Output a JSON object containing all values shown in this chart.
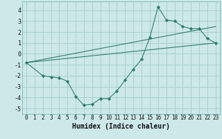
{
  "xlabel": "Humidex (Indice chaleur)",
  "background_color": "#cce8e8",
  "grid_color": "#aacfcf",
  "line_color": "#2e7d6e",
  "marker_color": "#2e7d6e",
  "xlim": [
    -0.5,
    23.5
  ],
  "ylim": [
    -5.5,
    4.8
  ],
  "xticks": [
    0,
    1,
    2,
    3,
    4,
    5,
    6,
    7,
    8,
    9,
    10,
    11,
    12,
    13,
    14,
    15,
    16,
    17,
    18,
    19,
    20,
    21,
    22,
    23
  ],
  "yticks": [
    -5,
    -4,
    -3,
    -2,
    -1,
    0,
    1,
    2,
    3,
    4
  ],
  "series1_x": [
    0,
    2,
    3,
    4,
    5,
    6,
    7,
    8,
    9,
    10,
    11,
    12,
    13,
    14,
    15,
    16,
    17,
    18,
    19,
    20,
    21,
    22,
    23
  ],
  "series1_y": [
    -0.8,
    -2.0,
    -2.1,
    -2.2,
    -2.5,
    -3.9,
    -4.7,
    -4.6,
    -4.1,
    -4.1,
    -3.4,
    -2.4,
    -1.4,
    -0.5,
    1.5,
    4.3,
    3.1,
    3.0,
    2.5,
    2.3,
    2.3,
    1.4,
    1.0
  ],
  "series2_x": [
    0,
    23
  ],
  "series2_y": [
    -0.8,
    1.0
  ],
  "series3_x": [
    0,
    23
  ],
  "series3_y": [
    -0.8,
    2.5
  ],
  "xlabel_fontsize": 7,
  "tick_fontsize": 5.5
}
